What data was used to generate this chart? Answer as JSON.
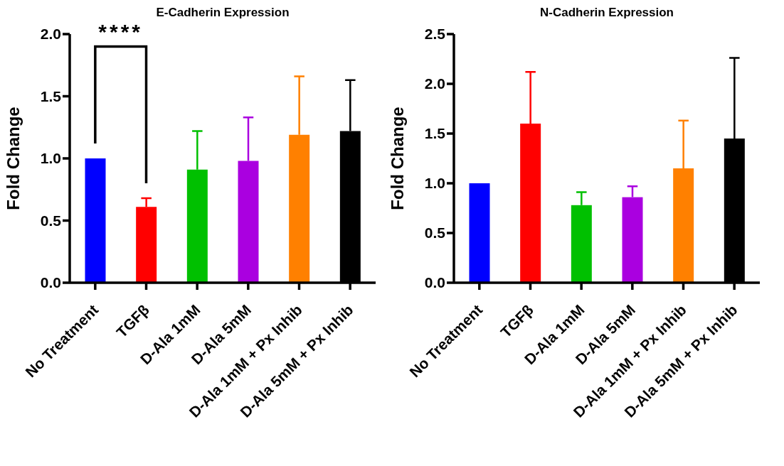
{
  "chart_data": [
    {
      "type": "bar",
      "title": "E-Cadherin Expression",
      "ylabel": "Fold Change",
      "categories": [
        "No Treatment",
        "TGFβ",
        "D-Ala 1mM",
        "D-Ala 5mM",
        "D-Ala 1mM + Px Inhib",
        "D-Ala 5mM + Px Inhib"
      ],
      "values": [
        1.0,
        0.61,
        0.91,
        0.98,
        1.19,
        1.22
      ],
      "errors": [
        null,
        [
          0.61,
          0.68
        ],
        [
          0.91,
          1.22
        ],
        [
          0.98,
          1.33
        ],
        [
          1.19,
          1.66
        ],
        [
          1.22,
          1.63
        ]
      ],
      "colors": [
        "#0000ff",
        "#ff0000",
        "#00c000",
        "#aa00e0",
        "#ff8000",
        "#000000"
      ],
      "ylim": [
        0,
        2.0
      ],
      "yticks": [
        {
          "value": 0,
          "label": "0.0"
        },
        {
          "value": 0.5,
          "label": "0.5"
        },
        {
          "value": 1,
          "label": "1.0"
        },
        {
          "value": 1.5,
          "label": "1.5"
        },
        {
          "value": 2,
          "label": "2.0"
        }
      ],
      "grid": false,
      "legend": false,
      "annotations": [
        "****"
      ]
    },
    {
      "type": "bar",
      "title": "N-Cadherin Expression",
      "ylabel": "Fold Change",
      "categories": [
        "No Treatment",
        "TGFβ",
        "D-Ala 1mM",
        "D-Ala 5mM",
        "D-Ala 1mM + Px Inhib",
        "D-Ala 5mM + Px Inhib"
      ],
      "values": [
        1.0,
        1.6,
        0.78,
        0.86,
        1.15,
        1.45
      ],
      "errors": [
        null,
        [
          1.6,
          2.12
        ],
        [
          0.78,
          0.91
        ],
        [
          0.86,
          0.97
        ],
        [
          1.15,
          1.63
        ],
        [
          1.45,
          2.26
        ]
      ],
      "colors": [
        "#0000ff",
        "#ff0000",
        "#00c000",
        "#aa00e0",
        "#ff8000",
        "#000000"
      ],
      "ylim": [
        0,
        2.5
      ],
      "yticks": [
        {
          "value": 0,
          "label": "0.0"
        },
        {
          "value": 0.5,
          "label": "0.5"
        },
        {
          "value": 1,
          "label": "1.0"
        },
        {
          "value": 1.5,
          "label": "1.5"
        },
        {
          "value": 2,
          "label": "2.0"
        },
        {
          "value": 2.5,
          "label": "2.5"
        }
      ],
      "grid": false,
      "legend": false
    }
  ]
}
